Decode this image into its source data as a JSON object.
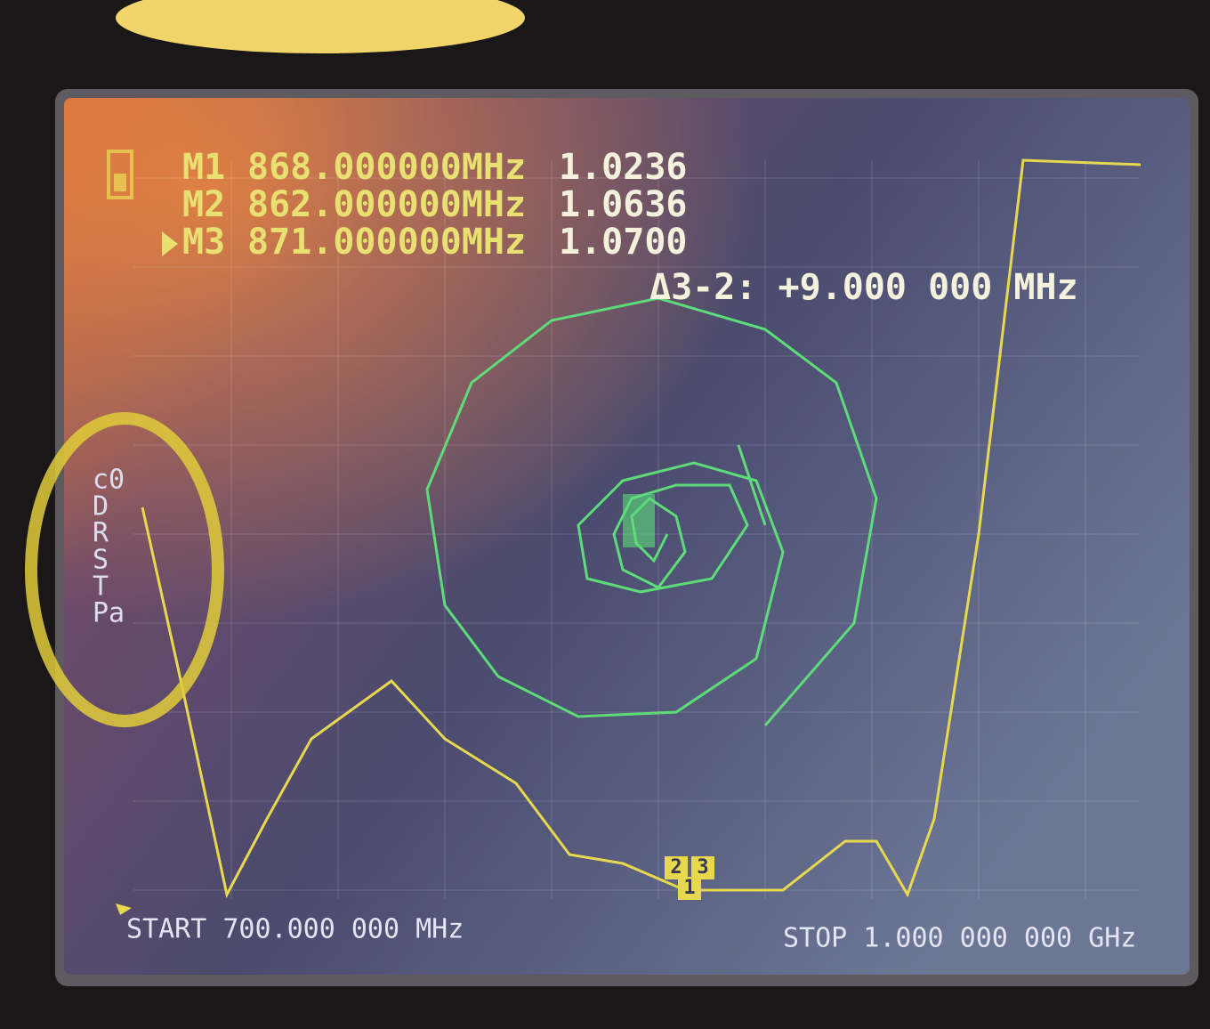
{
  "markers": [
    {
      "label": "M1",
      "frequency": "868.000000MHz",
      "value": "1.0236",
      "active": false
    },
    {
      "label": "M2",
      "frequency": "862.000000MHz",
      "value": "1.0636",
      "active": false
    },
    {
      "label": "M3",
      "frequency": "871.000000MHz",
      "value": "1.0700",
      "active": true
    }
  ],
  "delta": "Δ3-2: +9.000 000 MHz",
  "side_labels": [
    "c0",
    "D",
    "R",
    "S",
    "T",
    "Pa"
  ],
  "marker_flags": [
    "2",
    "3",
    "1"
  ],
  "start": "START 700.000 000 MHz",
  "stop": "STOP 1.000 000 000 GHz"
}
